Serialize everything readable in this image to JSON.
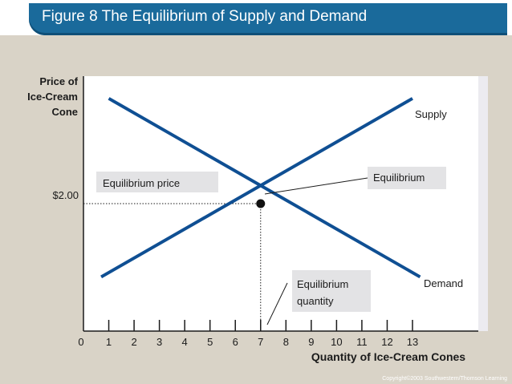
{
  "header": {
    "title": "Figure 8 The Equilibrium of Supply and Demand"
  },
  "footer": {
    "copyright": "Copyright©2003 Southwestern/Thomson Learning"
  },
  "colors": {
    "title_bg": "#1a6a9b",
    "curve": "#0f4f93",
    "background": "#d9d3c7",
    "plot_bg": "#ffffff"
  },
  "chart_data": {
    "type": "line",
    "ylabel_lines": [
      "Price of",
      "Ice-Cream",
      "Cone"
    ],
    "xlabel": "Quantity of Ice-Cream Cones",
    "x_ticks": [
      "0",
      "1",
      "2",
      "3",
      "4",
      "5",
      "6",
      "7",
      "8",
      "9",
      "10",
      "11",
      "12",
      "13"
    ],
    "xlim": [
      0,
      15.6
    ],
    "ylim": [
      0,
      4
    ],
    "y_tick_label": "$2.00",
    "series": [
      {
        "name": "Supply",
        "x": [
          0.7,
          13
        ],
        "y": [
          0.85,
          3.65
        ]
      },
      {
        "name": "Demand",
        "x": [
          1,
          13.3
        ],
        "y": [
          3.65,
          0.85
        ]
      }
    ],
    "equilibrium": {
      "x": 7,
      "y": 2.0
    },
    "annotations": {
      "equilibrium": "Equilibrium",
      "equilibrium_price": "Equilibrium price",
      "equilibrium_quantity_lines": [
        "Equilibrium",
        "quantity"
      ]
    }
  }
}
